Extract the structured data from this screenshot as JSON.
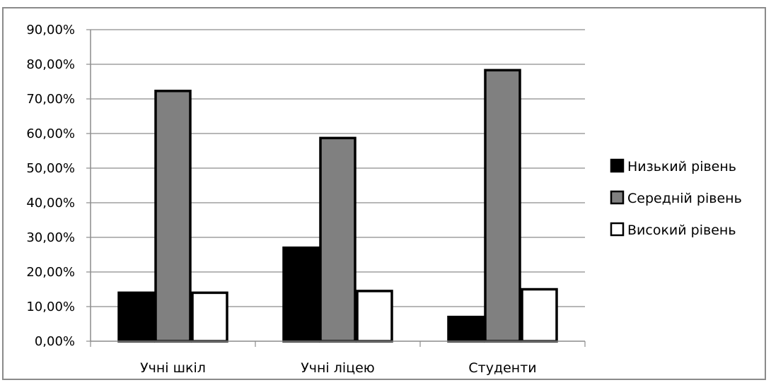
{
  "chart_data": {
    "type": "bar",
    "title": "",
    "xlabel": "",
    "ylabel": "",
    "categories": [
      "Учні шкіл",
      "Учні ліцею",
      "Студенти"
    ],
    "series": [
      {
        "name": "Низький рівень",
        "values": [
          14,
          27,
          7
        ],
        "color": "#000000"
      },
      {
        "name": "Середній рівень",
        "values": [
          72.3,
          58.7,
          78.3
        ],
        "color": "#808080"
      },
      {
        "name": "Високий рівень",
        "values": [
          14,
          14.5,
          15
        ],
        "color": "#ffffff"
      }
    ],
    "ylim": [
      0,
      90
    ],
    "yticks": [
      0,
      10,
      20,
      30,
      40,
      50,
      60,
      70,
      80,
      90
    ],
    "ytick_labels": [
      "0,00%",
      "10,00%",
      "20,00%",
      "30,00%",
      "40,00%",
      "50,00%",
      "60,00%",
      "70,00%",
      "80,00%",
      "90,00%"
    ],
    "grid": true,
    "legend_position": "right"
  }
}
